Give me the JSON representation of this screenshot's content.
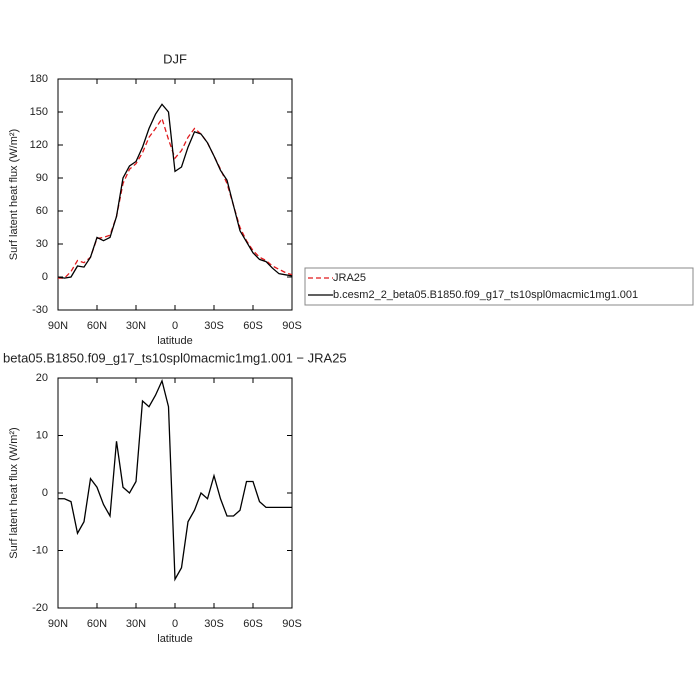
{
  "chart_data": [
    {
      "type": "line",
      "title": "DJF",
      "ylabel": "Surf latent heat flux (W/m²)",
      "xlabel": "latitude",
      "x": [
        90,
        85,
        80,
        75,
        70,
        65,
        60,
        55,
        50,
        45,
        40,
        35,
        30,
        25,
        20,
        15,
        10,
        5,
        0,
        -5,
        -10,
        -15,
        -20,
        -25,
        -30,
        -35,
        -40,
        -45,
        -50,
        -55,
        -60,
        -65,
        -70,
        -75,
        -80,
        -85,
        -90
      ],
      "xlim": [
        90,
        -90
      ],
      "xticks": [
        {
          "value": 90,
          "label": "90N"
        },
        {
          "value": 60,
          "label": "60N"
        },
        {
          "value": 30,
          "label": "30N"
        },
        0,
        {
          "value": -30,
          "label": "30S"
        },
        {
          "value": -60,
          "label": "60S"
        },
        {
          "value": -90,
          "label": "90S"
        }
      ],
      "ylim": [
        -30,
        180
      ],
      "yticks": [
        -30,
        0,
        30,
        60,
        90,
        120,
        150,
        180
      ],
      "series": [
        {
          "name": "JRA25",
          "color": "#e0191c",
          "linestyle": "dashed",
          "values": [
            -1,
            -1,
            5,
            15,
            13,
            18,
            35,
            36,
            38,
            55,
            85,
            98,
            103,
            113,
            127,
            135,
            144,
            125,
            108,
            115,
            127,
            135,
            130,
            122,
            110,
            98,
            85,
            65,
            45,
            33,
            24,
            18,
            15,
            10,
            7,
            4,
            2
          ]
        },
        {
          "name": "b.cesm2_2_beta05.B1850.f09_g17_ts10spl0macmic1mg1.001",
          "color": "#000000",
          "linestyle": "solid",
          "values": [
            0,
            -1,
            0,
            10,
            9,
            18,
            36,
            33,
            36,
            55,
            90,
            101,
            105,
            118,
            135,
            148,
            157,
            150,
            96,
            100,
            118,
            132,
            130,
            122,
            110,
            97,
            88,
            65,
            42,
            32,
            22,
            16,
            14,
            8,
            3,
            2,
            1
          ]
        }
      ]
    },
    {
      "type": "line",
      "title": "beta05.B1850.f09_g17_ts10spl0macmic1mg1.001 − JRA25",
      "ylabel": "Surf latent heat flux (W/m²)",
      "xlabel": "latitude",
      "x": [
        90,
        85,
        80,
        75,
        70,
        65,
        60,
        55,
        50,
        45,
        40,
        35,
        30,
        25,
        20,
        15,
        10,
        5,
        0,
        -5,
        -10,
        -15,
        -20,
        -25,
        -30,
        -35,
        -40,
        -45,
        -50,
        -55,
        -60,
        -65,
        -70,
        -75,
        -80,
        -85,
        -90
      ],
      "xlim": [
        90,
        -90
      ],
      "xticks": [
        {
          "value": 90,
          "label": "90N"
        },
        {
          "value": 60,
          "label": "60N"
        },
        {
          "value": 30,
          "label": "30N"
        },
        0,
        {
          "value": -30,
          "label": "30S"
        },
        {
          "value": -60,
          "label": "60S"
        },
        {
          "value": -90,
          "label": "90S"
        }
      ],
      "ylim": [
        -20,
        20
      ],
      "yticks": [
        -20,
        -10,
        0,
        10,
        20
      ],
      "color": "#000000",
      "values": [
        -1,
        -1,
        -1.5,
        -7,
        -5,
        2.5,
        1,
        -2,
        -4,
        9,
        1,
        0,
        2,
        16,
        15,
        17,
        19.5,
        15,
        -15,
        -13,
        -5,
        -3,
        0,
        -1,
        3,
        -1,
        -4,
        -4,
        -3,
        2,
        2,
        -1.5,
        -2.5,
        -2.5,
        -2.5,
        -2.5,
        -2.5
      ]
    }
  ]
}
